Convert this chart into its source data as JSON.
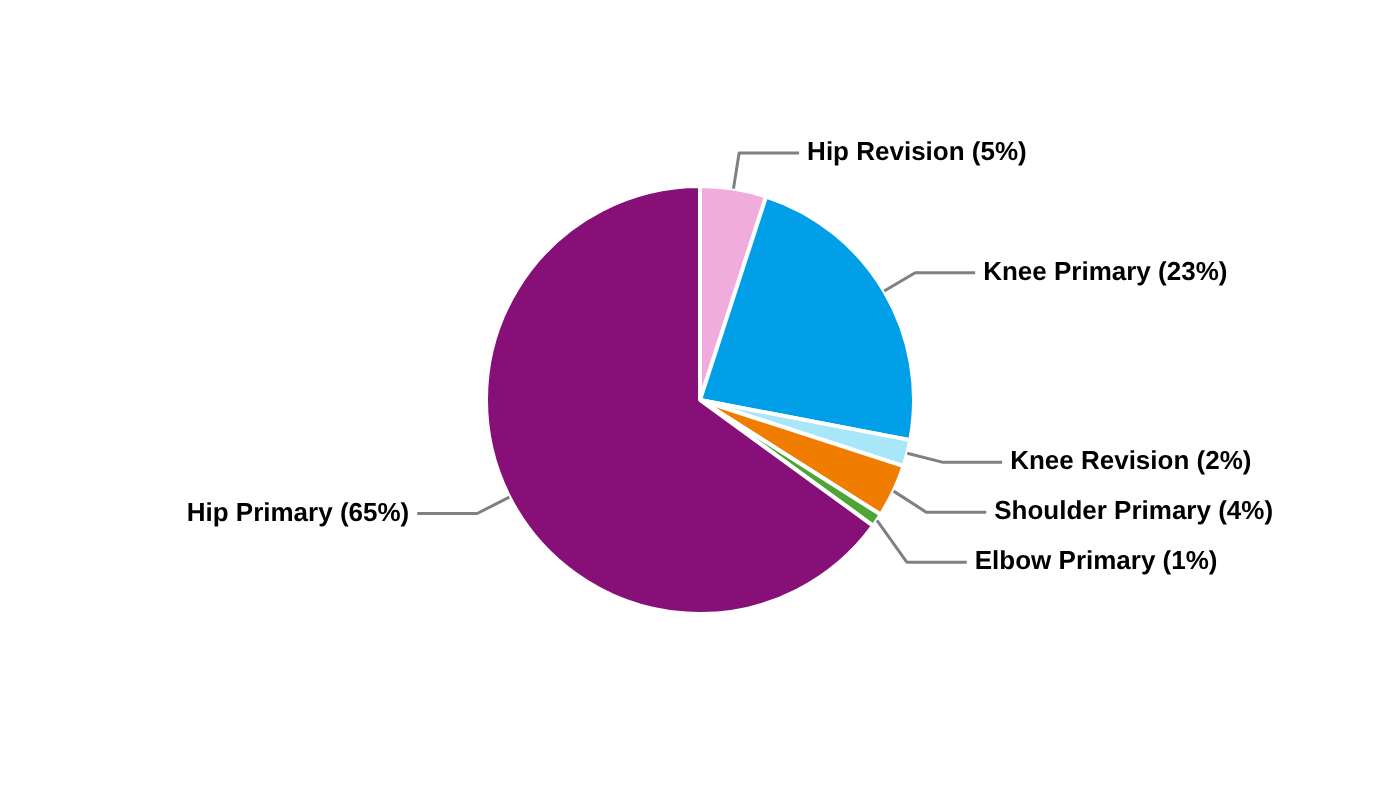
{
  "chart_data": {
    "type": "pie",
    "categories": [
      "Hip Revision (5%)",
      "Knee Primary (23%)",
      "Knee Revision (2%)",
      "Shoulder Primary (4%)",
      "Elbow Primary (1%)",
      "Hip Primary (65%)"
    ],
    "values": [
      5,
      23,
      2,
      4,
      1,
      65
    ],
    "colors": [
      "#f0acdc",
      "#009fe8",
      "#a8e6fa",
      "#f07d00",
      "#4ea535",
      "#861078"
    ],
    "legend": false
  }
}
